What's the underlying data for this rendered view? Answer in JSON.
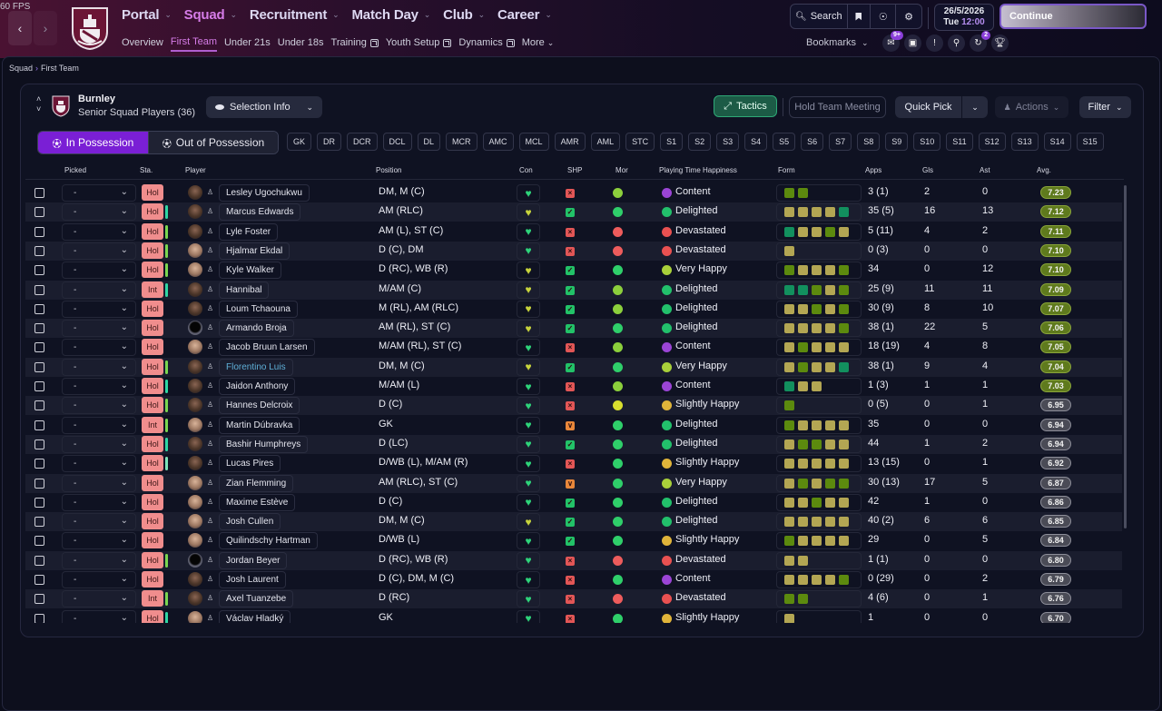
{
  "fps": "60 FPS",
  "nav": {
    "main": [
      {
        "label": "Portal",
        "active": false
      },
      {
        "label": "Squad",
        "active": true
      },
      {
        "label": "Recruitment",
        "active": false
      },
      {
        "label": "Match Day",
        "active": false
      },
      {
        "label": "Club",
        "active": false
      },
      {
        "label": "Career",
        "active": false
      }
    ],
    "sub": [
      {
        "label": "Overview",
        "active": false,
        "external": false
      },
      {
        "label": "First Team",
        "active": true,
        "external": false
      },
      {
        "label": "Under 21s",
        "active": false,
        "external": false
      },
      {
        "label": "Under 18s",
        "active": false,
        "external": false
      },
      {
        "label": "Training",
        "active": false,
        "external": true
      },
      {
        "label": "Youth Setup",
        "active": false,
        "external": true
      },
      {
        "label": "Dynamics",
        "active": false,
        "external": true
      },
      {
        "label": "More",
        "active": false,
        "external": false
      }
    ]
  },
  "toolbar": {
    "search_label": "Search",
    "date": "26/5/2026",
    "day": "Tue",
    "time": "12:00",
    "continue_label": "Continue",
    "bookmarks_label": "Bookmarks",
    "inbox_badge": "9+",
    "tasks_badge": "2"
  },
  "breadcrumb": {
    "parent": "Squad",
    "current": "First Team"
  },
  "club": {
    "name": "Burnley",
    "subtitle": "Senior Squad Players (36)"
  },
  "buttons": {
    "selection_info": "Selection Info",
    "tactics": "Tactics",
    "hold_meeting": "Hold Team Meeting",
    "quick_pick": "Quick Pick",
    "actions": "Actions",
    "filter": "Filter",
    "in_possession": "In Possession",
    "out_possession": "Out of Possession"
  },
  "position_chips": [
    "GK",
    "DR",
    "DCR",
    "DCL",
    "DL",
    "MCR",
    "AMC",
    "MCL",
    "AMR",
    "AML",
    "STC",
    "S1",
    "S2",
    "S3",
    "S4",
    "S5",
    "S6",
    "S7",
    "S8",
    "S9",
    "S10",
    "S11",
    "S12",
    "S13",
    "S14",
    "S15"
  ],
  "columns": {
    "picked": "Picked",
    "sta": "Sta.",
    "player": "Player",
    "position": "Position",
    "con": "Con",
    "shp": "SHP",
    "mor": "Mor",
    "pth": "Playing Time Happiness",
    "form": "Form",
    "apps": "Apps",
    "gls": "Gls",
    "ast": "Ast",
    "avg": "Avg."
  },
  "colors": {
    "accent": "#7a1fd5",
    "form_olive": "#b3a653",
    "form_green": "#5c8a0e",
    "form_teal": "#12905e",
    "content": "#9b45d6",
    "delighted": "#22c06b",
    "very_happy": "#a9d03a",
    "slightly_happy": "#e0b43a",
    "devastated": "#e95151"
  },
  "players": [
    {
      "picked": "-",
      "sta": "Hol",
      "stripe": "",
      "name": "Lesley Ugochukwu",
      "pos": "DM, M (C)",
      "con": "green",
      "shp": "x",
      "mor": "lime",
      "happy": "Content",
      "form": [
        "g",
        "g"
      ],
      "apps": "3 (1)",
      "gls": "2",
      "ast": "0",
      "avg": "7.23",
      "avg_hi": true,
      "face": "dark",
      "link": false
    },
    {
      "picked": "-",
      "sta": "Hol",
      "stripe": "teal",
      "name": "Marcus Edwards",
      "pos": "AM (RLC)",
      "con": "yellow",
      "shp": "ok",
      "mor": "green",
      "happy": "Delighted",
      "form": [
        "o",
        "o",
        "o",
        "o",
        "t"
      ],
      "apps": "35 (5)",
      "gls": "16",
      "ast": "13",
      "avg": "7.12",
      "avg_hi": true,
      "face": "dark",
      "link": false
    },
    {
      "picked": "-",
      "sta": "Hol",
      "stripe": "lime",
      "name": "Lyle Foster",
      "pos": "AM (L), ST (C)",
      "con": "green",
      "shp": "x",
      "mor": "red",
      "happy": "Devastated",
      "form": [
        "t",
        "o",
        "o",
        "g",
        "o"
      ],
      "apps": "5 (11)",
      "gls": "4",
      "ast": "2",
      "avg": "7.11",
      "avg_hi": true,
      "face": "dark",
      "link": false
    },
    {
      "picked": "-",
      "sta": "Hol",
      "stripe": "lime",
      "name": "Hjalmar Ekdal",
      "pos": "D (C), DM",
      "con": "green",
      "shp": "x",
      "mor": "red",
      "happy": "Devastated",
      "form": [
        "o"
      ],
      "apps": "0 (3)",
      "gls": "0",
      "ast": "0",
      "avg": "7.10",
      "avg_hi": true,
      "face": "light",
      "link": false
    },
    {
      "picked": "-",
      "sta": "Hol",
      "stripe": "lime",
      "name": "Kyle Walker",
      "pos": "D (RC), WB (R)",
      "con": "yellow",
      "shp": "ok",
      "mor": "green",
      "happy": "Very Happy",
      "form": [
        "g",
        "o",
        "o",
        "o",
        "g"
      ],
      "apps": "34",
      "gls": "0",
      "ast": "12",
      "avg": "7.10",
      "avg_hi": true,
      "face": "light",
      "link": false
    },
    {
      "picked": "-",
      "sta": "Int",
      "stripe": "teal",
      "name": "Hannibal",
      "pos": "M/AM (C)",
      "con": "yellow",
      "shp": "ok",
      "mor": "lime",
      "happy": "Delighted",
      "form": [
        "t",
        "t",
        "g",
        "o",
        "g"
      ],
      "apps": "25 (9)",
      "gls": "11",
      "ast": "11",
      "avg": "7.09",
      "avg_hi": true,
      "face": "dark",
      "link": false
    },
    {
      "picked": "-",
      "sta": "Hol",
      "stripe": "",
      "name": "Loum Tchaouna",
      "pos": "M (RL), AM (RLC)",
      "con": "yellow",
      "shp": "ok",
      "mor": "lime",
      "happy": "Delighted",
      "form": [
        "o",
        "o",
        "g",
        "o",
        "g"
      ],
      "apps": "30 (9)",
      "gls": "8",
      "ast": "10",
      "avg": "7.07",
      "avg_hi": true,
      "face": "dark",
      "link": false
    },
    {
      "picked": "-",
      "sta": "Hol",
      "stripe": "",
      "name": "Armando Broja",
      "pos": "AM (RL), ST (C)",
      "con": "yellow",
      "shp": "ok",
      "mor": "green",
      "happy": "Delighted",
      "form": [
        "o",
        "o",
        "o",
        "o",
        "g"
      ],
      "apps": "38 (1)",
      "gls": "22",
      "ast": "5",
      "avg": "7.06",
      "avg_hi": true,
      "face": "sil",
      "link": false
    },
    {
      "picked": "-",
      "sta": "Hol",
      "stripe": "",
      "name": "Jacob Bruun Larsen",
      "pos": "M/AM (RL), ST (C)",
      "con": "green",
      "shp": "x",
      "mor": "lime",
      "happy": "Content",
      "form": [
        "o",
        "g",
        "o",
        "o",
        "o"
      ],
      "apps": "18 (19)",
      "gls": "4",
      "ast": "8",
      "avg": "7.05",
      "avg_hi": true,
      "face": "light",
      "link": false
    },
    {
      "picked": "-",
      "sta": "Hol",
      "stripe": "lime",
      "name": "Florentino Luis",
      "pos": "DM, M (C)",
      "con": "yellow",
      "shp": "ok",
      "mor": "green",
      "happy": "Very Happy",
      "form": [
        "o",
        "g",
        "o",
        "o",
        "t"
      ],
      "apps": "38 (1)",
      "gls": "9",
      "ast": "4",
      "avg": "7.04",
      "avg_hi": true,
      "face": "dark",
      "link": true
    },
    {
      "picked": "-",
      "sta": "Hol",
      "stripe": "teal",
      "name": "Jaidon Anthony",
      "pos": "M/AM (L)",
      "con": "green",
      "shp": "x",
      "mor": "lime",
      "happy": "Content",
      "form": [
        "t",
        "o",
        "o"
      ],
      "apps": "1 (3)",
      "gls": "1",
      "ast": "1",
      "avg": "7.03",
      "avg_hi": true,
      "face": "dark",
      "link": false
    },
    {
      "picked": "-",
      "sta": "Hol",
      "stripe": "lime",
      "name": "Hannes Delcroix",
      "pos": "D (C)",
      "con": "green",
      "shp": "x",
      "mor": "yellow",
      "happy": "Slightly Happy",
      "form": [
        "g"
      ],
      "apps": "0 (5)",
      "gls": "0",
      "ast": "1",
      "avg": "6.95",
      "avg_hi": false,
      "face": "dark",
      "link": false
    },
    {
      "picked": "-",
      "sta": "Int",
      "stripe": "lime",
      "name": "Martin Dúbravka",
      "pos": "GK",
      "con": "green",
      "shp": "down",
      "mor": "green",
      "happy": "Delighted",
      "form": [
        "g",
        "o",
        "o",
        "o",
        "o"
      ],
      "apps": "35",
      "gls": "0",
      "ast": "0",
      "avg": "6.94",
      "avg_hi": false,
      "face": "light",
      "link": false
    },
    {
      "picked": "-",
      "sta": "Hol",
      "stripe": "teal",
      "name": "Bashir Humphreys",
      "pos": "D (LC)",
      "con": "green",
      "shp": "ok",
      "mor": "green",
      "happy": "Delighted",
      "form": [
        "o",
        "g",
        "g",
        "o",
        "o"
      ],
      "apps": "44",
      "gls": "1",
      "ast": "2",
      "avg": "6.94",
      "avg_hi": false,
      "face": "dark",
      "link": false
    },
    {
      "picked": "-",
      "sta": "Hol",
      "stripe": "mint",
      "name": "Lucas Pires",
      "pos": "D/WB (L), M/AM (R)",
      "con": "green",
      "shp": "x",
      "mor": "green",
      "happy": "Slightly Happy",
      "form": [
        "o",
        "o",
        "o",
        "o",
        "o"
      ],
      "apps": "13 (15)",
      "gls": "0",
      "ast": "1",
      "avg": "6.92",
      "avg_hi": false,
      "face": "dark",
      "link": false
    },
    {
      "picked": "-",
      "sta": "Hol",
      "stripe": "",
      "name": "Zian Flemming",
      "pos": "AM (RLC), ST (C)",
      "con": "green",
      "shp": "down",
      "mor": "green",
      "happy": "Very Happy",
      "form": [
        "o",
        "g",
        "o",
        "g",
        "g"
      ],
      "apps": "30 (13)",
      "gls": "17",
      "ast": "5",
      "avg": "6.87",
      "avg_hi": false,
      "face": "light",
      "link": false
    },
    {
      "picked": "-",
      "sta": "Hol",
      "stripe": "",
      "name": "Maxime Estève",
      "pos": "D (C)",
      "con": "green",
      "shp": "ok",
      "mor": "green",
      "happy": "Delighted",
      "form": [
        "o",
        "o",
        "g",
        "o",
        "o"
      ],
      "apps": "42",
      "gls": "1",
      "ast": "0",
      "avg": "6.86",
      "avg_hi": false,
      "face": "light",
      "link": false
    },
    {
      "picked": "-",
      "sta": "Hol",
      "stripe": "",
      "name": "Josh Cullen",
      "pos": "DM, M (C)",
      "con": "yellow",
      "shp": "ok",
      "mor": "green",
      "happy": "Delighted",
      "form": [
        "o",
        "o",
        "o",
        "o",
        "o"
      ],
      "apps": "40 (2)",
      "gls": "6",
      "ast": "6",
      "avg": "6.85",
      "avg_hi": false,
      "face": "light",
      "link": false
    },
    {
      "picked": "-",
      "sta": "Hol",
      "stripe": "",
      "name": "Quilindschy Hartman",
      "pos": "D/WB (L)",
      "con": "green",
      "shp": "ok",
      "mor": "green",
      "happy": "Slightly Happy",
      "form": [
        "g",
        "o",
        "o",
        "o",
        "o"
      ],
      "apps": "29",
      "gls": "0",
      "ast": "5",
      "avg": "6.84",
      "avg_hi": false,
      "face": "light",
      "link": false
    },
    {
      "picked": "-",
      "sta": "Hol",
      "stripe": "lime",
      "name": "Jordan Beyer",
      "pos": "D (RC), WB (R)",
      "con": "green",
      "shp": "x",
      "mor": "red",
      "happy": "Devastated",
      "form": [
        "o",
        "o"
      ],
      "apps": "1 (1)",
      "gls": "0",
      "ast": "0",
      "avg": "6.80",
      "avg_hi": false,
      "face": "sil",
      "link": false
    },
    {
      "picked": "-",
      "sta": "Hol",
      "stripe": "",
      "name": "Josh Laurent",
      "pos": "D (C), DM, M (C)",
      "con": "green",
      "shp": "x",
      "mor": "green",
      "happy": "Content",
      "form": [
        "o",
        "o",
        "o",
        "o",
        "g"
      ],
      "apps": "0 (29)",
      "gls": "0",
      "ast": "2",
      "avg": "6.79",
      "avg_hi": false,
      "face": "dark",
      "link": false
    },
    {
      "picked": "-",
      "sta": "Int",
      "stripe": "lime",
      "name": "Axel Tuanzebe",
      "pos": "D (RC)",
      "con": "green",
      "shp": "x",
      "mor": "red",
      "happy": "Devastated",
      "form": [
        "g",
        "g"
      ],
      "apps": "4 (6)",
      "gls": "0",
      "ast": "1",
      "avg": "6.76",
      "avg_hi": false,
      "face": "dark",
      "link": false
    },
    {
      "picked": "-",
      "sta": "Hol",
      "stripe": "teal",
      "name": "Václav Hladký",
      "pos": "GK",
      "con": "green",
      "shp": "x",
      "mor": "green",
      "happy": "Slightly Happy",
      "form": [
        "o"
      ],
      "apps": "1",
      "gls": "0",
      "ast": "0",
      "avg": "6.70",
      "avg_hi": false,
      "face": "light",
      "link": false
    }
  ]
}
